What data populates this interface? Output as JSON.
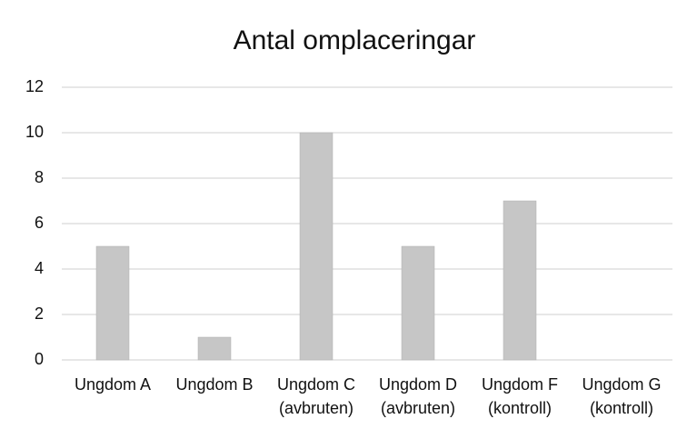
{
  "chart_data": {
    "type": "bar",
    "title": "Antal omplaceringar",
    "categories": [
      [
        "Ungdom A"
      ],
      [
        "Ungdom B"
      ],
      [
        "Ungdom C",
        "(avbruten)"
      ],
      [
        "Ungdom D",
        "(avbruten)"
      ],
      [
        "Ungdom F",
        "(kontroll)"
      ],
      [
        "Ungdom G",
        "(kontroll)"
      ]
    ],
    "values": [
      5,
      1,
      10,
      5,
      7,
      0
    ],
    "color": "#c6c6c6",
    "ylim": [
      0,
      12
    ],
    "yticks": [
      0,
      2,
      4,
      6,
      8,
      10,
      12
    ],
    "grid": true
  }
}
